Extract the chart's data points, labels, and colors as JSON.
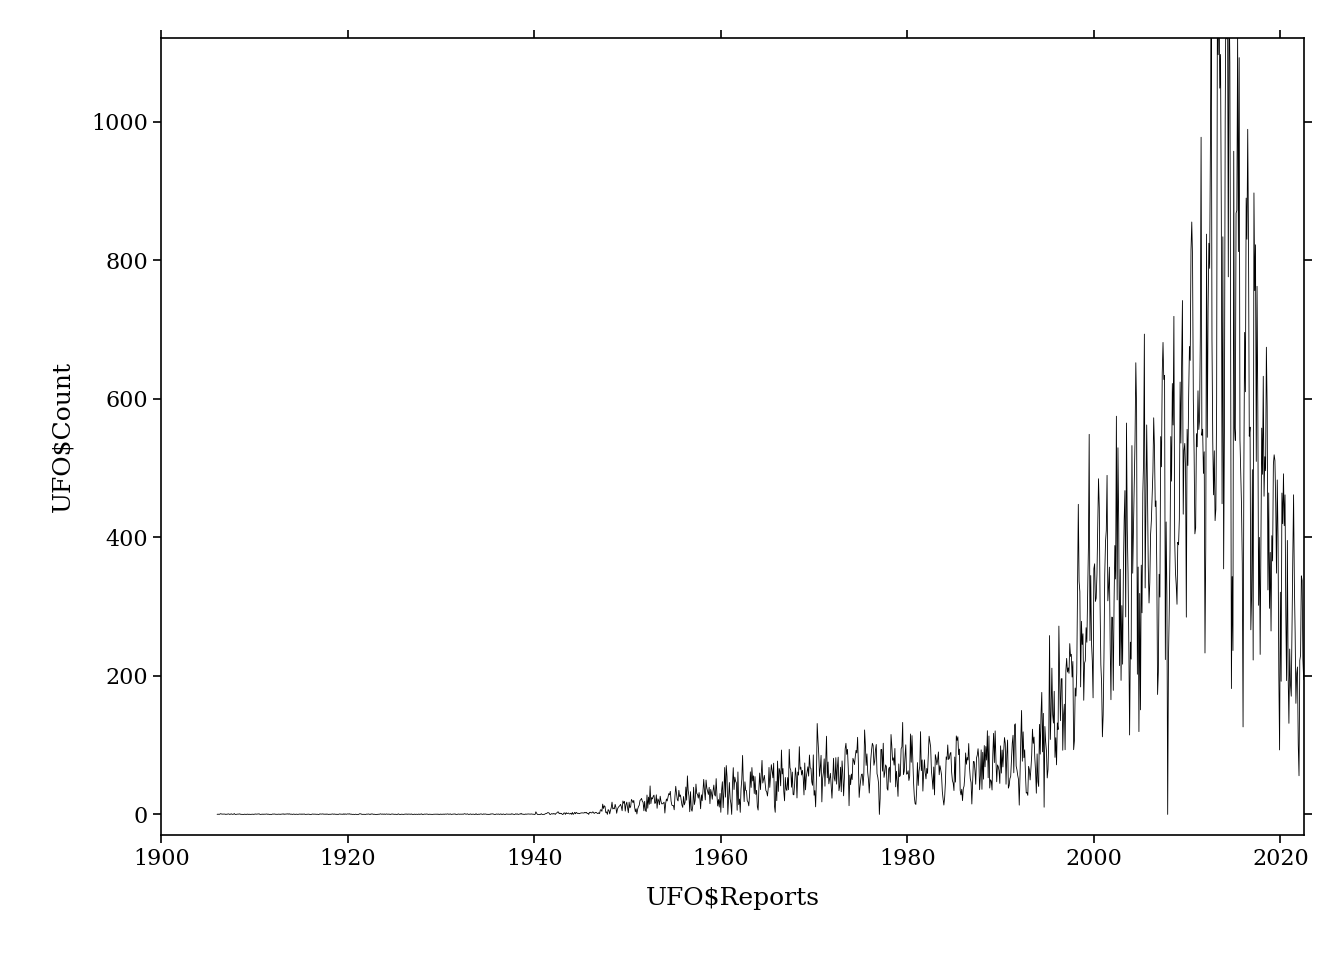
{
  "title": "",
  "xlabel": "UFO$Reports",
  "ylabel": "UFO$Count",
  "xlim": [
    1900,
    2022.5
  ],
  "ylim": [
    -30,
    1120
  ],
  "x_ticks": [
    1900,
    1920,
    1940,
    1960,
    1980,
    2000,
    2020
  ],
  "y_ticks": [
    0,
    200,
    400,
    600,
    800,
    1000
  ],
  "line_color": "#000000",
  "line_width": 0.6,
  "background_color": "#ffffff",
  "axis_label_fontsize": 18,
  "tick_fontsize": 16
}
